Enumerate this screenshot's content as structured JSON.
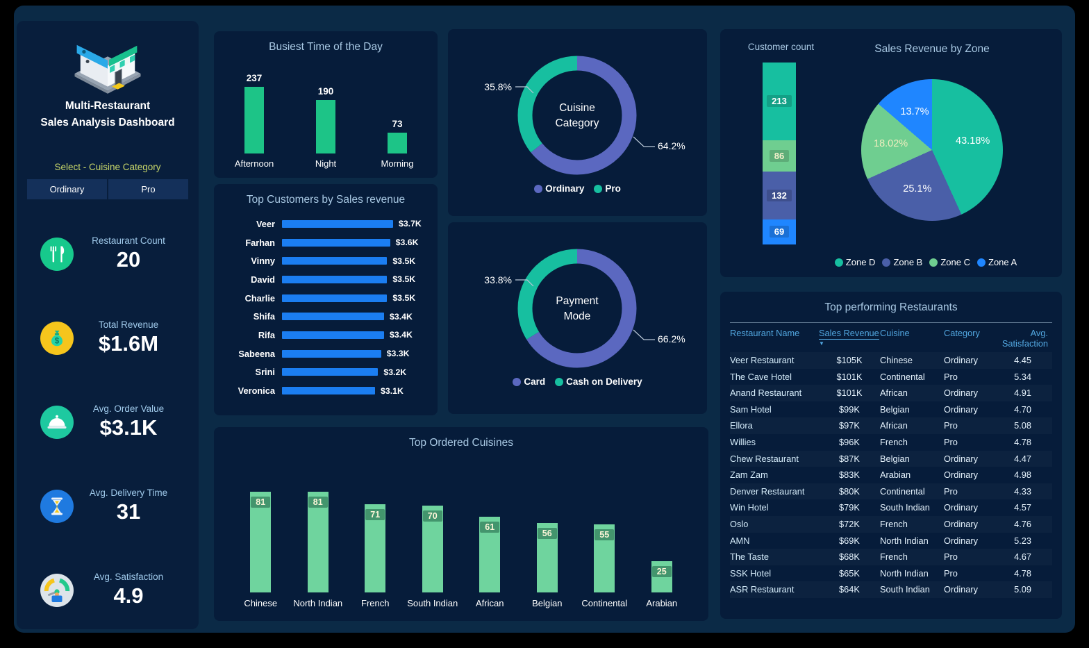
{
  "colors": {
    "page_background": "#000000",
    "dashboard_background": "#0b2a46",
    "panel_background": "#061c3a",
    "sidebar_background": "#081e3c",
    "panel_title": "#a9c9e4",
    "accent_green": "#1dc487",
    "accent_blue": "#1b7ef2",
    "donut_purple": "#5b68c0",
    "donut_teal": "#17bfa0",
    "slicer_label": "#c9d86a",
    "slicer_button_background": "#14305a",
    "table_header": "#52a7e0"
  },
  "sidebar": {
    "logo_icon": "restaurant-store-illustration",
    "title_line1": "Multi-Restaurant",
    "title_line2": "Sales Analysis Dashboard",
    "slicer_label": "Select - Cuisine Category",
    "slicer_options": [
      "Ordinary",
      "Pro"
    ],
    "kpis": [
      {
        "label": "Restaurant Count",
        "value": "20",
        "icon": "fork-knife-icon",
        "icon_bg": "#17c98c"
      },
      {
        "label": "Total Revenue",
        "value": "$1.6M",
        "icon": "money-bag-icon",
        "icon_bg": "#f6c51c"
      },
      {
        "label": "Avg. Order Value",
        "value": "$3.1K",
        "icon": "serving-cloche-icon",
        "icon_bg": "#1ec9a0"
      },
      {
        "label": "Avg. Delivery Time",
        "value": "31",
        "icon": "hourglass-icon",
        "icon_bg": "#1f7ae0"
      },
      {
        "label": "Avg. Satisfaction",
        "value": "4.9",
        "icon": "gauge-icon",
        "icon_bg": "#dde4ea"
      }
    ]
  },
  "chart_data": [
    {
      "id": "busiest-time",
      "type": "bar",
      "title": "Busiest Time of the Day",
      "categories": [
        "Afternoon",
        "Night",
        "Morning"
      ],
      "values": [
        237,
        190,
        73
      ],
      "value_labels": [
        "237",
        "190",
        "73"
      ],
      "bar_color": "#1dc487"
    },
    {
      "id": "top-customers",
      "type": "bar",
      "orientation": "horizontal",
      "title": "Top Customers by Sales revenue",
      "categories": [
        "Veer",
        "Farhan",
        "Vinny",
        "David",
        "Charlie",
        "Shifa",
        "Rifa",
        "Sabeena",
        "Srini",
        "Veronica"
      ],
      "values": [
        3700,
        3600,
        3500,
        3500,
        3500,
        3400,
        3400,
        3300,
        3200,
        3100
      ],
      "value_labels": [
        "$3.7K",
        "$3.6K",
        "$3.5K",
        "$3.5K",
        "$3.5K",
        "$3.4K",
        "$3.4K",
        "$3.3K",
        "$3.2K",
        "$3.1K"
      ],
      "bar_color": "#1b7ef2"
    },
    {
      "id": "cuisine-category",
      "type": "pie",
      "subtype": "donut",
      "center_label": [
        "Cuisine",
        "Category"
      ],
      "slices": [
        {
          "label": "Ordinary",
          "pct": 64.2,
          "pct_label": "64.2%",
          "color": "#5b68c0",
          "callout": "right"
        },
        {
          "label": "Pro",
          "pct": 35.8,
          "pct_label": "35.8%",
          "color": "#17bfa0",
          "callout": "left"
        }
      ]
    },
    {
      "id": "payment-mode",
      "type": "pie",
      "subtype": "donut",
      "center_label": [
        "Payment",
        "Mode"
      ],
      "slices": [
        {
          "label": "Card",
          "pct": 66.2,
          "pct_label": "66.2%",
          "color": "#5b68c0",
          "callout": "right"
        },
        {
          "label": "Cash on Delivery",
          "pct": 33.8,
          "pct_label": "33.8%",
          "color": "#17bfa0",
          "callout": "left"
        }
      ]
    },
    {
      "id": "customer-count",
      "type": "bar",
      "subtype": "stacked-column",
      "title": "Customer count",
      "segments": [
        {
          "value": 213,
          "color": "#17bfa0",
          "label_color": "#ffffff"
        },
        {
          "value": 86,
          "color": "#6fce90",
          "label_color": "#f5f1cd"
        },
        {
          "value": 132,
          "color": "#4a5fa8",
          "label_color": "#ffffff"
        },
        {
          "value": 69,
          "color": "#1f86ff",
          "label_color": "#ffffff"
        }
      ]
    },
    {
      "id": "sales-revenue-by-zone",
      "type": "pie",
      "title": "Sales Revenue by Zone",
      "slices": [
        {
          "label": "Zone D",
          "pct": 43.18,
          "pct_label": "43.18%",
          "color": "#17bfa0",
          "label_color": "#ffffff"
        },
        {
          "label": "Zone B",
          "pct": 25.1,
          "pct_label": "25.1%",
          "color": "#4a5fa8",
          "label_color": "#ffffff"
        },
        {
          "label": "Zone C",
          "pct": 18.02,
          "pct_label": "18.02%",
          "color": "#6fce90",
          "label_color": "#efedbe"
        },
        {
          "label": "Zone A",
          "pct": 13.7,
          "pct_label": "13.7%",
          "color": "#1f86ff",
          "label_color": "#ffffff"
        }
      ],
      "legend_order": [
        "Zone D",
        "Zone B",
        "Zone C",
        "Zone A"
      ]
    },
    {
      "id": "top-ordered-cuisines",
      "type": "bar",
      "title": "Top Ordered Cuisines",
      "categories": [
        "Chinese",
        "North Indian",
        "French",
        "South Indian",
        "African",
        "Belgian",
        "Continental",
        "Arabian"
      ],
      "values": [
        81,
        81,
        71,
        70,
        61,
        56,
        55,
        25
      ],
      "value_labels": [
        "81",
        "81",
        "71",
        "70",
        "61",
        "56",
        "55",
        "25"
      ],
      "bar_color": "#6fd49e"
    },
    {
      "id": "top-performing-restaurants",
      "type": "table",
      "title": "Top performing Restaurants",
      "columns": [
        "Restaurant Name",
        "Sales Revenue",
        "Cuisine",
        "Category",
        "Avg. Satisfaction"
      ],
      "sort_column": "Sales Revenue",
      "sort_direction": "desc",
      "rows": [
        [
          "Veer Restaurant",
          "$105K",
          "Chinese",
          "Ordinary",
          "4.45"
        ],
        [
          "The Cave Hotel",
          "$101K",
          "Continental",
          "Pro",
          "5.34"
        ],
        [
          "Anand Restaurant",
          "$101K",
          "African",
          "Ordinary",
          "4.91"
        ],
        [
          "Sam Hotel",
          "$99K",
          "Belgian",
          "Ordinary",
          "4.70"
        ],
        [
          "Ellora",
          "$97K",
          "African",
          "Pro",
          "5.08"
        ],
        [
          "Willies",
          "$96K",
          "French",
          "Pro",
          "4.78"
        ],
        [
          "Chew Restaurant",
          "$87K",
          "Belgian",
          "Ordinary",
          "4.47"
        ],
        [
          "Zam Zam",
          "$83K",
          "Arabian",
          "Ordinary",
          "4.98"
        ],
        [
          "Denver Restaurant",
          "$80K",
          "Continental",
          "Pro",
          "4.33"
        ],
        [
          "Win Hotel",
          "$79K",
          "South Indian",
          "Ordinary",
          "4.57"
        ],
        [
          "Oslo",
          "$72K",
          "French",
          "Ordinary",
          "4.76"
        ],
        [
          "AMN",
          "$69K",
          "North Indian",
          "Ordinary",
          "5.23"
        ],
        [
          "The Taste",
          "$68K",
          "French",
          "Pro",
          "4.67"
        ],
        [
          "SSK Hotel",
          "$65K",
          "North Indian",
          "Pro",
          "4.78"
        ],
        [
          "ASR Restaurant",
          "$64K",
          "South Indian",
          "Ordinary",
          "5.09"
        ]
      ]
    }
  ]
}
